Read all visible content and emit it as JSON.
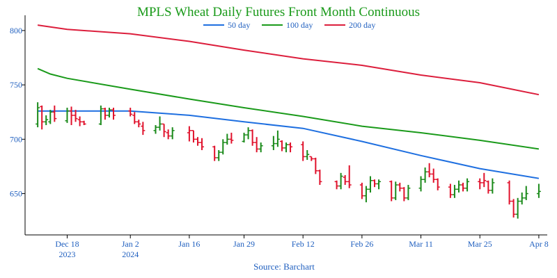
{
  "chart_data": {
    "type": "ohlc",
    "title": "MPLS Wheat Daily Futures Front Month Continuous",
    "source": "Source: Barchart",
    "xlabel": "",
    "ylabel": "",
    "ylim": [
      612,
      814
    ],
    "yticks": [
      650,
      700,
      750,
      800
    ],
    "grid": false,
    "legend_placement": "top-center",
    "colors": {
      "title": "#1a9a1a",
      "axis_text": "#1f5fbf",
      "up": "#1a8a1a",
      "down": "#e0112b",
      "ma50": "#1e6fe0",
      "ma100": "#1a9a1a",
      "ma200": "#dc1e3c"
    },
    "xticks": [
      {
        "label": "Dec 18",
        "sublabel": "2023",
        "date": "2023-12-18"
      },
      {
        "label": "Jan 2",
        "sublabel": "2024",
        "date": "2024-01-02"
      },
      {
        "label": "Jan 16",
        "sublabel": "",
        "date": "2024-01-16"
      },
      {
        "label": "Jan 29",
        "sublabel": "",
        "date": "2024-01-29"
      },
      {
        "label": "Feb 12",
        "sublabel": "",
        "date": "2024-02-12"
      },
      {
        "label": "Feb 26",
        "sublabel": "",
        "date": "2024-02-26"
      },
      {
        "label": "Mar 11",
        "sublabel": "",
        "date": "2024-03-11"
      },
      {
        "label": "Mar 25",
        "sublabel": "",
        "date": "2024-03-25"
      },
      {
        "label": "Apr 8",
        "sublabel": "",
        "date": "2024-04-08"
      }
    ],
    "series": [
      {
        "name": "50 day",
        "color": "#1e6fe0",
        "points": [
          [
            "2023-12-11",
            726
          ],
          [
            "2023-12-18",
            726
          ],
          [
            "2024-01-02",
            726
          ],
          [
            "2024-01-16",
            722
          ],
          [
            "2024-01-29",
            716
          ],
          [
            "2024-02-12",
            710
          ],
          [
            "2024-02-26",
            698
          ],
          [
            "2024-03-11",
            685
          ],
          [
            "2024-03-25",
            673
          ],
          [
            "2024-04-08",
            664
          ]
        ]
      },
      {
        "name": "100 day",
        "color": "#1a9a1a",
        "points": [
          [
            "2023-12-11",
            765
          ],
          [
            "2023-12-14",
            760
          ],
          [
            "2023-12-18",
            756
          ],
          [
            "2024-01-02",
            746
          ],
          [
            "2024-01-16",
            737
          ],
          [
            "2024-01-29",
            729
          ],
          [
            "2024-02-12",
            721
          ],
          [
            "2024-02-26",
            712
          ],
          [
            "2024-03-11",
            706
          ],
          [
            "2024-03-25",
            699
          ],
          [
            "2024-04-08",
            691
          ]
        ]
      },
      {
        "name": "200 day",
        "color": "#dc1e3c",
        "points": [
          [
            "2023-12-11",
            805
          ],
          [
            "2023-12-18",
            801
          ],
          [
            "2024-01-02",
            797
          ],
          [
            "2024-01-16",
            790
          ],
          [
            "2024-01-29",
            782
          ],
          [
            "2024-02-12",
            774
          ],
          [
            "2024-02-26",
            768
          ],
          [
            "2024-03-11",
            759
          ],
          [
            "2024-03-25",
            752
          ],
          [
            "2024-04-08",
            741
          ]
        ]
      }
    ],
    "bars": [
      {
        "date": "2023-12-11",
        "open": 714,
        "high": 734,
        "low": 711,
        "close": 729,
        "dir": "up"
      },
      {
        "date": "2023-12-12",
        "open": 730,
        "high": 731,
        "low": 709,
        "close": 716,
        "dir": "down"
      },
      {
        "date": "2023-12-13",
        "open": 716,
        "high": 722,
        "low": 713,
        "close": 718,
        "dir": "up"
      },
      {
        "date": "2023-12-14",
        "open": 716,
        "high": 727,
        "low": 714,
        "close": 725,
        "dir": "up"
      },
      {
        "date": "2023-12-15",
        "open": 725,
        "high": 731,
        "low": 716,
        "close": 719,
        "dir": "down"
      },
      {
        "date": "2023-12-18",
        "open": 717,
        "high": 729,
        "low": 715,
        "close": 726,
        "dir": "up"
      },
      {
        "date": "2023-12-19",
        "open": 726,
        "high": 730,
        "low": 713,
        "close": 722,
        "dir": "down"
      },
      {
        "date": "2023-12-20",
        "open": 722,
        "high": 727,
        "low": 716,
        "close": 719,
        "dir": "down"
      },
      {
        "date": "2023-12-21",
        "open": 718,
        "high": 721,
        "low": 712,
        "close": 716,
        "dir": "down"
      },
      {
        "date": "2023-12-22",
        "open": 716,
        "high": 717,
        "low": 713,
        "close": 714,
        "dir": "down"
      },
      {
        "date": "2023-12-26",
        "open": 714,
        "high": 731,
        "low": 713,
        "close": 728,
        "dir": "up"
      },
      {
        "date": "2023-12-27",
        "open": 728,
        "high": 729,
        "low": 718,
        "close": 722,
        "dir": "down"
      },
      {
        "date": "2023-12-28",
        "open": 722,
        "high": 729,
        "low": 720,
        "close": 727,
        "dir": "up"
      },
      {
        "date": "2023-12-29",
        "open": 727,
        "high": 729,
        "low": 718,
        "close": 722,
        "dir": "down"
      },
      {
        "date": "2024-01-02",
        "open": 726,
        "high": 729,
        "low": 721,
        "close": 723,
        "dir": "down"
      },
      {
        "date": "2024-01-03",
        "open": 722,
        "high": 725,
        "low": 714,
        "close": 716,
        "dir": "down"
      },
      {
        "date": "2024-01-04",
        "open": 716,
        "high": 718,
        "low": 711,
        "close": 714,
        "dir": "down"
      },
      {
        "date": "2024-01-05",
        "open": 712,
        "high": 716,
        "low": 704,
        "close": 708,
        "dir": "down"
      },
      {
        "date": "2024-01-08",
        "open": 708,
        "high": 713,
        "low": 705,
        "close": 711,
        "dir": "up"
      },
      {
        "date": "2024-01-09",
        "open": 711,
        "high": 721,
        "low": 708,
        "close": 714,
        "dir": "up"
      },
      {
        "date": "2024-01-10",
        "open": 714,
        "high": 714,
        "low": 702,
        "close": 707,
        "dir": "down"
      },
      {
        "date": "2024-01-11",
        "open": 706,
        "high": 709,
        "low": 700,
        "close": 703,
        "dir": "down"
      },
      {
        "date": "2024-01-12",
        "open": 703,
        "high": 711,
        "low": 700,
        "close": 708,
        "dir": "up"
      },
      {
        "date": "2024-01-16",
        "open": 706,
        "high": 712,
        "low": 698,
        "close": 708,
        "dir": "down"
      },
      {
        "date": "2024-01-17",
        "open": 708,
        "high": 708,
        "low": 697,
        "close": 700,
        "dir": "down"
      },
      {
        "date": "2024-01-18",
        "open": 700,
        "high": 702,
        "low": 694,
        "close": 697,
        "dir": "down"
      },
      {
        "date": "2024-01-19",
        "open": 697,
        "high": 701,
        "low": 690,
        "close": 693,
        "dir": "down"
      },
      {
        "date": "2024-01-22",
        "open": 693,
        "high": 694,
        "low": 680,
        "close": 683,
        "dir": "down"
      },
      {
        "date": "2024-01-23",
        "open": 683,
        "high": 690,
        "low": 680,
        "close": 688,
        "dir": "up"
      },
      {
        "date": "2024-01-24",
        "open": 688,
        "high": 700,
        "low": 686,
        "close": 697,
        "dir": "up"
      },
      {
        "date": "2024-01-25",
        "open": 697,
        "high": 705,
        "low": 695,
        "close": 700,
        "dir": "up"
      },
      {
        "date": "2024-01-26",
        "open": 700,
        "high": 706,
        "low": 696,
        "close": 699,
        "dir": "down"
      },
      {
        "date": "2024-01-29",
        "open": 698,
        "high": 706,
        "low": 697,
        "close": 704,
        "dir": "up"
      },
      {
        "date": "2024-01-30",
        "open": 704,
        "high": 711,
        "low": 700,
        "close": 708,
        "dir": "up"
      },
      {
        "date": "2024-01-31",
        "open": 708,
        "high": 709,
        "low": 694,
        "close": 697,
        "dir": "down"
      },
      {
        "date": "2024-02-01",
        "open": 697,
        "high": 702,
        "low": 688,
        "close": 691,
        "dir": "down"
      },
      {
        "date": "2024-02-02",
        "open": 691,
        "high": 697,
        "low": 688,
        "close": 694,
        "dir": "up"
      },
      {
        "date": "2024-02-05",
        "open": 694,
        "high": 703,
        "low": 690,
        "close": 696,
        "dir": "up"
      },
      {
        "date": "2024-02-06",
        "open": 696,
        "high": 708,
        "low": 693,
        "close": 700,
        "dir": "up"
      },
      {
        "date": "2024-02-07",
        "open": 698,
        "high": 699,
        "low": 689,
        "close": 692,
        "dir": "down"
      },
      {
        "date": "2024-02-08",
        "open": 692,
        "high": 697,
        "low": 688,
        "close": 695,
        "dir": "up"
      },
      {
        "date": "2024-02-09",
        "open": 695,
        "high": 697,
        "low": 688,
        "close": 693,
        "dir": "down"
      },
      {
        "date": "2024-02-12",
        "open": 695,
        "high": 698,
        "low": 680,
        "close": 684,
        "dir": "down"
      },
      {
        "date": "2024-02-13",
        "open": 684,
        "high": 690,
        "low": 681,
        "close": 686,
        "dir": "up"
      },
      {
        "date": "2024-02-14",
        "open": 684,
        "high": 684,
        "low": 680,
        "close": 682,
        "dir": "down"
      },
      {
        "date": "2024-02-15",
        "open": 682,
        "high": 683,
        "low": 668,
        "close": 671,
        "dir": "down"
      },
      {
        "date": "2024-02-16",
        "open": 671,
        "high": 672,
        "low": 658,
        "close": 661,
        "dir": "down"
      },
      {
        "date": "2024-02-20",
        "open": 661,
        "high": 662,
        "low": 654,
        "close": 657,
        "dir": "down"
      },
      {
        "date": "2024-02-21",
        "open": 657,
        "high": 669,
        "low": 654,
        "close": 666,
        "dir": "up"
      },
      {
        "date": "2024-02-22",
        "open": 665,
        "high": 667,
        "low": 658,
        "close": 661,
        "dir": "down"
      },
      {
        "date": "2024-02-23",
        "open": 661,
        "high": 676,
        "low": 655,
        "close": 658,
        "dir": "down"
      },
      {
        "date": "2024-02-26",
        "open": 658,
        "high": 660,
        "low": 645,
        "close": 648,
        "dir": "down"
      },
      {
        "date": "2024-02-27",
        "open": 648,
        "high": 657,
        "low": 642,
        "close": 654,
        "dir": "up"
      },
      {
        "date": "2024-02-28",
        "open": 654,
        "high": 666,
        "low": 651,
        "close": 662,
        "dir": "up"
      },
      {
        "date": "2024-02-29",
        "open": 662,
        "high": 663,
        "low": 656,
        "close": 659,
        "dir": "down"
      },
      {
        "date": "2024-03-01",
        "open": 659,
        "high": 663,
        "low": 654,
        "close": 661,
        "dir": "up"
      },
      {
        "date": "2024-03-04",
        "open": 661,
        "high": 662,
        "low": 643,
        "close": 646,
        "dir": "down"
      },
      {
        "date": "2024-03-05",
        "open": 646,
        "high": 661,
        "low": 644,
        "close": 658,
        "dir": "up"
      },
      {
        "date": "2024-03-06",
        "open": 658,
        "high": 660,
        "low": 652,
        "close": 655,
        "dir": "down"
      },
      {
        "date": "2024-03-07",
        "open": 655,
        "high": 656,
        "low": 643,
        "close": 646,
        "dir": "down"
      },
      {
        "date": "2024-03-08",
        "open": 646,
        "high": 658,
        "low": 644,
        "close": 655,
        "dir": "up"
      },
      {
        "date": "2024-03-11",
        "open": 655,
        "high": 666,
        "low": 652,
        "close": 663,
        "dir": "up"
      },
      {
        "date": "2024-03-12",
        "open": 663,
        "high": 674,
        "low": 660,
        "close": 670,
        "dir": "up"
      },
      {
        "date": "2024-03-13",
        "open": 670,
        "high": 678,
        "low": 665,
        "close": 668,
        "dir": "down"
      },
      {
        "date": "2024-03-14",
        "open": 668,
        "high": 673,
        "low": 660,
        "close": 663,
        "dir": "down"
      },
      {
        "date": "2024-03-15",
        "open": 663,
        "high": 664,
        "low": 653,
        "close": 656,
        "dir": "down"
      },
      {
        "date": "2024-03-18",
        "open": 656,
        "high": 659,
        "low": 646,
        "close": 649,
        "dir": "down"
      },
      {
        "date": "2024-03-19",
        "open": 649,
        "high": 658,
        "low": 646,
        "close": 654,
        "dir": "up"
      },
      {
        "date": "2024-03-20",
        "open": 654,
        "high": 662,
        "low": 651,
        "close": 658,
        "dir": "up"
      },
      {
        "date": "2024-03-21",
        "open": 658,
        "high": 660,
        "low": 652,
        "close": 655,
        "dir": "down"
      },
      {
        "date": "2024-03-22",
        "open": 655,
        "high": 664,
        "low": 652,
        "close": 661,
        "dir": "up"
      },
      {
        "date": "2024-03-25",
        "open": 661,
        "high": 664,
        "low": 654,
        "close": 660,
        "dir": "down"
      },
      {
        "date": "2024-03-26",
        "open": 660,
        "high": 669,
        "low": 656,
        "close": 662,
        "dir": "down"
      },
      {
        "date": "2024-03-27",
        "open": 661,
        "high": 662,
        "low": 650,
        "close": 653,
        "dir": "down"
      },
      {
        "date": "2024-03-28",
        "open": 653,
        "high": 664,
        "low": 650,
        "close": 660,
        "dir": "up"
      },
      {
        "date": "2024-04-01",
        "open": 660,
        "high": 662,
        "low": 640,
        "close": 643,
        "dir": "down"
      },
      {
        "date": "2024-04-02",
        "open": 643,
        "high": 645,
        "low": 628,
        "close": 631,
        "dir": "down"
      },
      {
        "date": "2024-04-03",
        "open": 631,
        "high": 646,
        "low": 627,
        "close": 643,
        "dir": "up"
      },
      {
        "date": "2024-04-04",
        "open": 643,
        "high": 651,
        "low": 640,
        "close": 646,
        "dir": "up"
      },
      {
        "date": "2024-04-05",
        "open": 646,
        "high": 657,
        "low": 644,
        "close": 650,
        "dir": "up"
      },
      {
        "date": "2024-04-08",
        "open": 650,
        "high": 659,
        "low": 646,
        "close": 652,
        "dir": "up"
      }
    ]
  }
}
